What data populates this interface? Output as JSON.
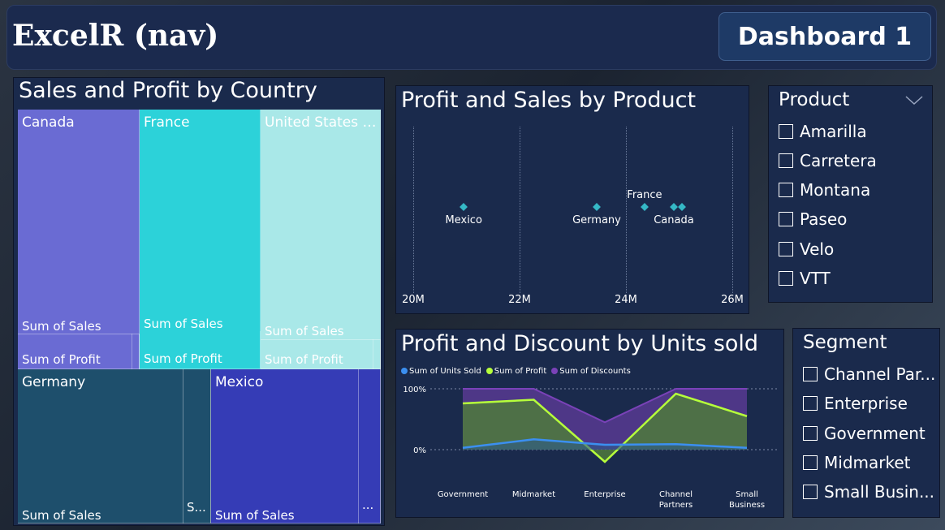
{
  "header": {
    "app_title": "ExcelR (nav)",
    "dashboard_button": "Dashboard 1"
  },
  "treemap": {
    "title": "Sales and Profit by Country",
    "tiles": [
      {
        "country": "Canada",
        "color": "#6a6bd3",
        "sales_label": "Sum of Sales",
        "profit_label": "Sum of Profit"
      },
      {
        "country": "France",
        "color": "#2cd2d9",
        "sales_label": "Sum of Sales",
        "profit_label": "Sum of Profit"
      },
      {
        "country": "United States o...",
        "color": "#a9e8e8",
        "sales_label": "Sum of Sales",
        "profit_label": "Sum of Profit"
      },
      {
        "country": "Germany",
        "color": "#1e4f6c",
        "sales_label": "Sum of Sales",
        "small_label": "S..."
      },
      {
        "country": "Mexico",
        "color": "#353cb6",
        "sales_label": "Sum of Sales",
        "small_label": "..."
      }
    ]
  },
  "scatter": {
    "title": "Profit and Sales by Product",
    "x_ticks": [
      "20M",
      "22M",
      "24M",
      "26M"
    ],
    "points": [
      {
        "label": "Mexico",
        "x": 20.95
      },
      {
        "label": "Germany",
        "x": 23.45
      },
      {
        "label": "France",
        "x": 24.35
      },
      {
        "label": "Canada",
        "x": 24.9
      },
      {
        "label": "",
        "x": 25.05
      }
    ],
    "color": "#35b8c6"
  },
  "area_chart": {
    "title": "Profit and Discount by Units sold",
    "legend": [
      {
        "name": "Sum of Units Sold",
        "color": "#3b8ff0"
      },
      {
        "name": "Sum of Profit",
        "color": "#b6ff3b"
      },
      {
        "name": "Sum of Discounts",
        "color": "#7a42b8"
      }
    ],
    "y_ticks": [
      "100%",
      "0%"
    ],
    "categories": [
      "Government",
      "Midmarket",
      "Enterprise",
      "Channel Partners",
      "Small Business"
    ],
    "category_labels": [
      [
        "Government"
      ],
      [
        "Midmarket"
      ],
      [
        "Enterprise"
      ],
      [
        "Channel",
        "Partners"
      ],
      [
        "Small",
        "Business"
      ]
    ],
    "series": {
      "units_sold": [
        3,
        17,
        8,
        9,
        3
      ],
      "profit": [
        76,
        82,
        -20,
        92,
        55
      ],
      "discounts": [
        100,
        100,
        45,
        100,
        100
      ]
    }
  },
  "product_slicer": {
    "title": "Product",
    "items": [
      "Amarilla",
      "Carretera",
      "Montana",
      "Paseo",
      "Velo",
      "VTT"
    ]
  },
  "segment_slicer": {
    "title": "Segment",
    "items": [
      "Channel Par...",
      "Enterprise",
      "Government",
      "Midmarket",
      "Small Busin..."
    ]
  }
}
